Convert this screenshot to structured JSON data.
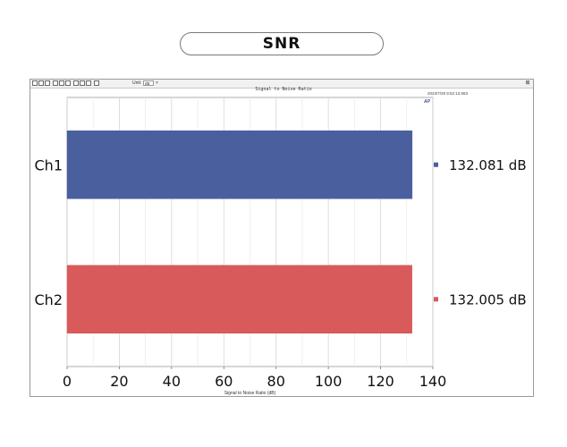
{
  "header": {
    "title": "SNR"
  },
  "toolbar": {
    "unit_prefix": "Unit:",
    "unit_value": "dB"
  },
  "window": {
    "timestamp": "2023/7/29 9:52:13.683",
    "logo": "AP"
  },
  "chart_data": {
    "type": "bar",
    "orientation": "horizontal",
    "title": "Signal to Noise Ratio",
    "xlabel": "Signal to Noise Ratio (dB)",
    "ylabel": "",
    "categories": [
      "Ch1",
      "Ch2"
    ],
    "series": [
      {
        "values": [
          132.081,
          132.005
        ]
      }
    ],
    "bar_colors": [
      "#4a5f9e",
      "#d85a5a"
    ],
    "value_labels": [
      "132.081 dB",
      "132.005 dB"
    ],
    "xlim": [
      0,
      140
    ],
    "xticks": [
      0,
      20,
      40,
      60,
      80,
      100,
      120,
      140
    ],
    "grid": true,
    "legend": "none"
  }
}
